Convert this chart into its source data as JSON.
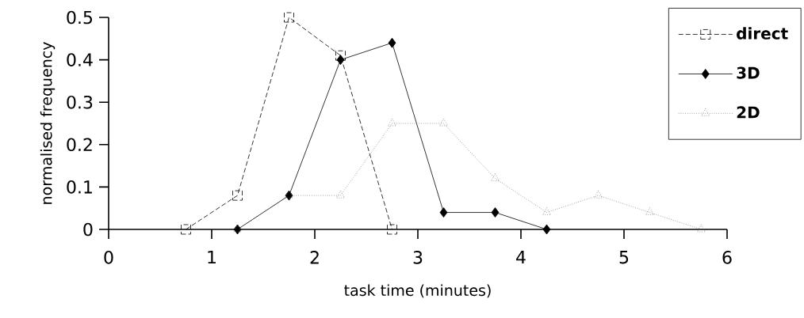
{
  "chart_data": {
    "type": "line",
    "xlabel": "task time (minutes)",
    "ylabel": "normalised frequency",
    "xlim": [
      0,
      6
    ],
    "ylim": [
      0,
      0.5
    ],
    "xticks": [
      0,
      1,
      2,
      3,
      4,
      5,
      6
    ],
    "yticks": [
      0,
      0.1,
      0.2,
      0.3,
      0.4,
      0.5
    ],
    "legend": "top right",
    "grid": false,
    "series": [
      {
        "name": "direct",
        "color": "#000000",
        "marker": "square",
        "line_style": "dashed",
        "x": [
          0.75,
          1.25,
          1.75,
          2.25,
          2.75
        ],
        "values": [
          0,
          0.08,
          0.5,
          0.41,
          0
        ]
      },
      {
        "name": "3D",
        "color": "#000000",
        "marker": "diamond",
        "line_style": "solid",
        "x": [
          1.25,
          1.75,
          2.25,
          2.75,
          3.25,
          3.75,
          4.25
        ],
        "values": [
          0,
          0.08,
          0.4,
          0.44,
          0.04,
          0.04,
          0
        ]
      },
      {
        "name": "2D",
        "color": "#707070",
        "marker": "triangle",
        "line_style": "dotted",
        "x": [
          1.25,
          1.75,
          2.25,
          2.75,
          3.25,
          3.75,
          4.25,
          4.75,
          5.25,
          5.75
        ],
        "values": [
          0,
          0.08,
          0.08,
          0.25,
          0.25,
          0.12,
          0.04,
          0.08,
          0.04,
          0
        ]
      }
    ]
  }
}
